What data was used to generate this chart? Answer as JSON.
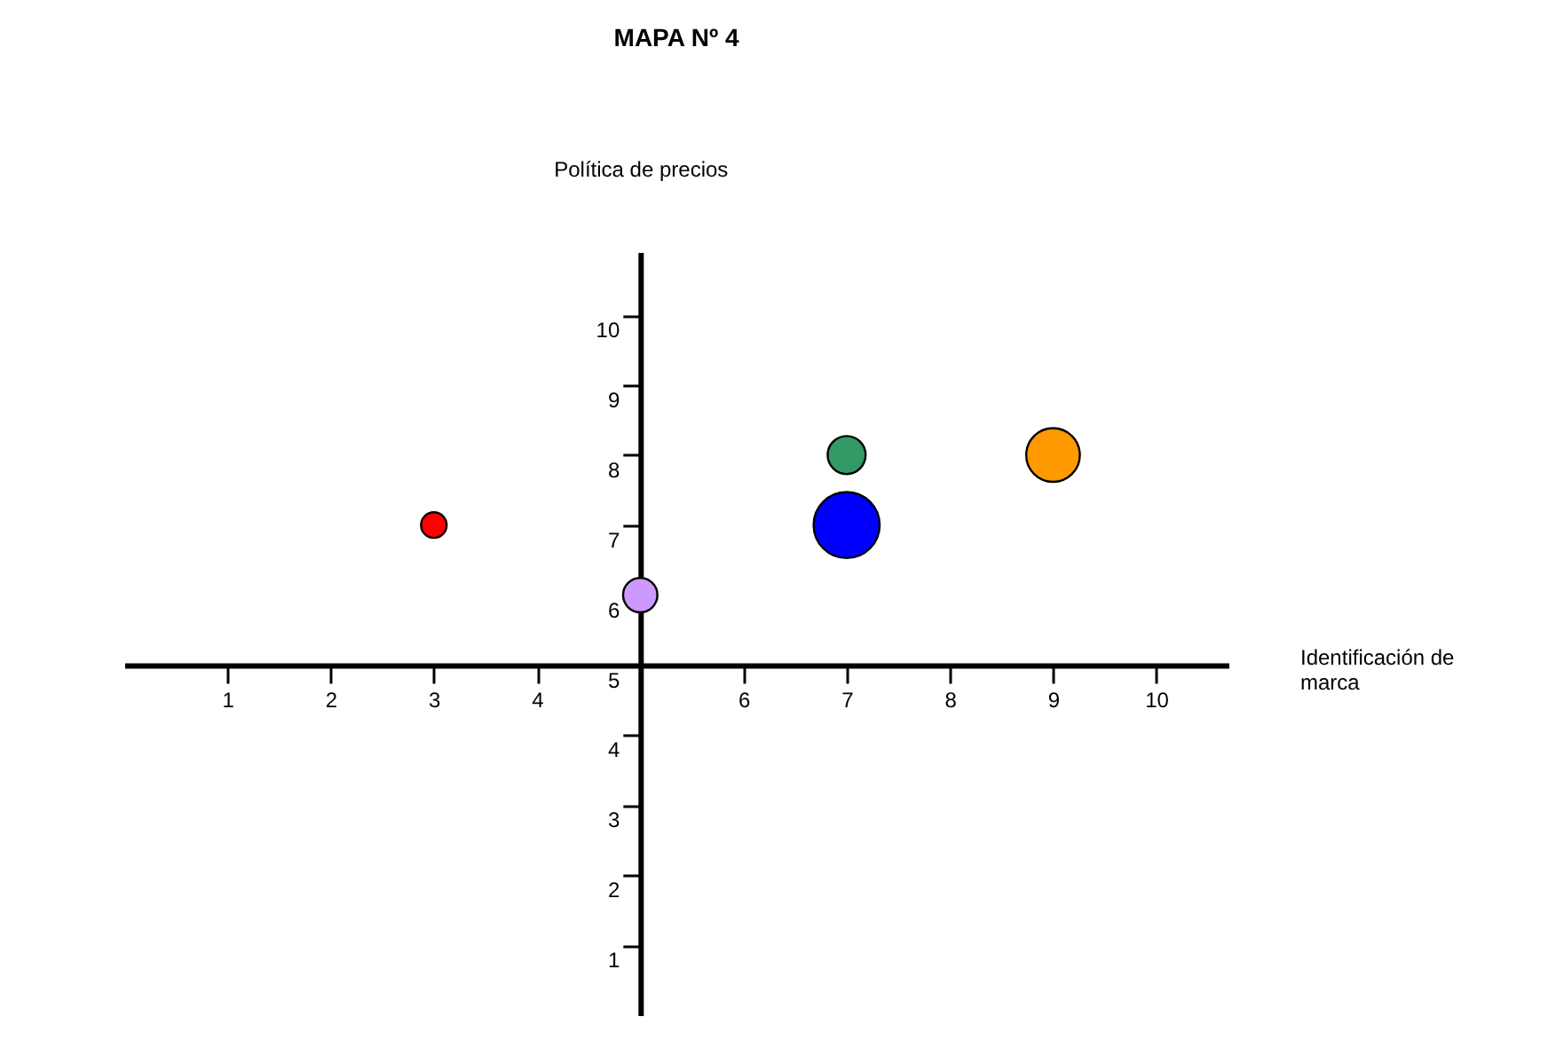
{
  "chart_data": {
    "type": "bubble",
    "title": "MAPA Nº 4",
    "xlabel": "Identificación de marca",
    "ylabel": "Política de precios",
    "x": [
      3,
      5,
      7,
      7,
      9
    ],
    "values": [
      7,
      6,
      8,
      7,
      8
    ],
    "sizes": [
      0.15,
      0.27,
      0.33,
      1,
      0.66
    ],
    "colors": [
      "#ff0000",
      "#cc99ff",
      "#339966",
      "#0000ff",
      "#ff9900"
    ],
    "xlim": [
      0,
      10.7
    ],
    "ylim": [
      0,
      10.9
    ],
    "xticks": [
      1,
      2,
      3,
      4,
      {
        "value": 5,
        "label": null
      },
      6,
      7,
      8,
      9,
      10
    ],
    "yticks": [
      1,
      2,
      3,
      4,
      5,
      6,
      7,
      8,
      9,
      10
    ],
    "grid": false
  }
}
